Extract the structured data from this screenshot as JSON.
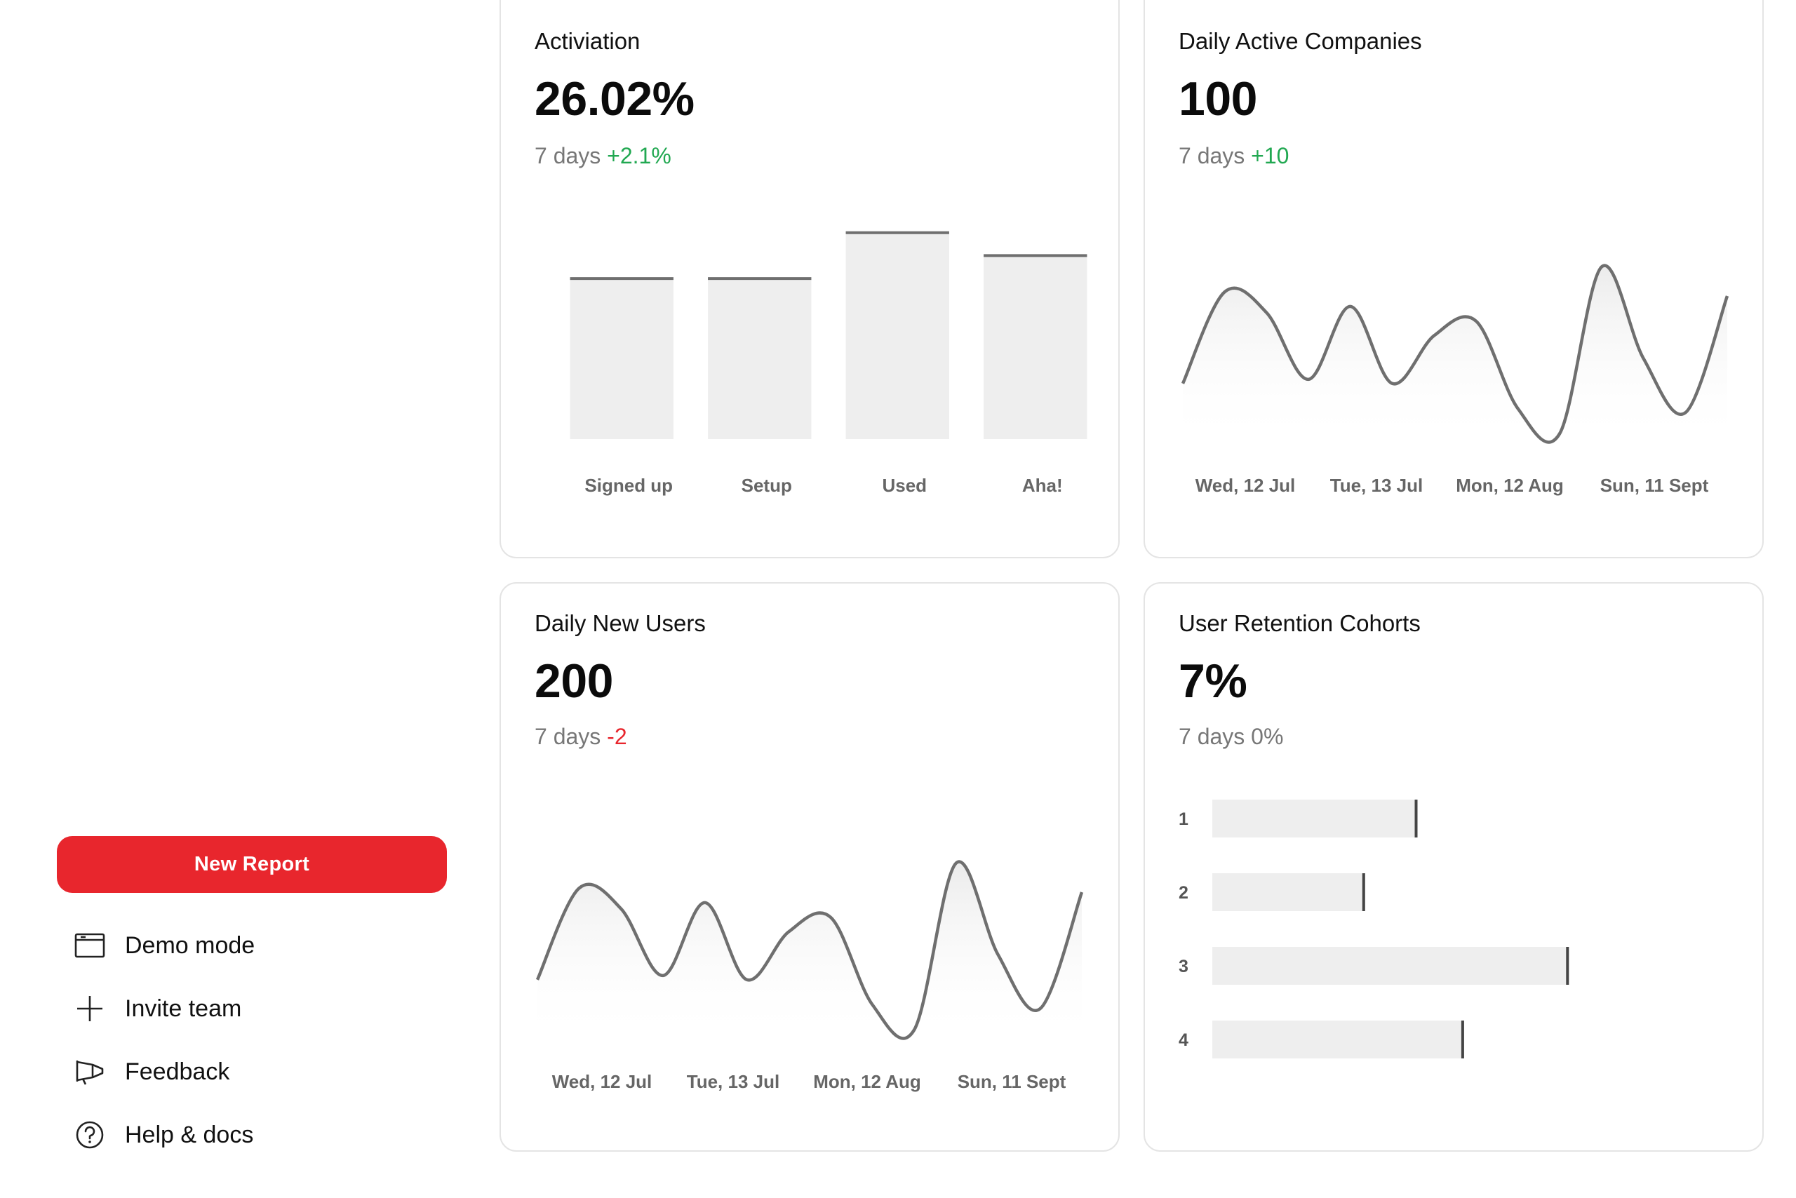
{
  "sidebar": {
    "new_report_label": "New Report",
    "items": [
      {
        "label": "Demo mode",
        "icon": "window-icon"
      },
      {
        "label": "Invite team",
        "icon": "plus-icon"
      },
      {
        "label": "Feedback",
        "icon": "megaphone-icon"
      },
      {
        "label": "Help & docs",
        "icon": "help-circle-icon"
      }
    ]
  },
  "colors": {
    "accent": "#e8262d",
    "positive": "#21a851",
    "negative": "#e8262d",
    "bar_fill": "#eeeeee",
    "line": "#6f6f6f"
  },
  "cards": {
    "activation": {
      "title": "Activiation",
      "value": "26.02%",
      "period": "7 days",
      "delta": "+2.1%"
    },
    "daily_active_companies": {
      "title": "Daily Active Companies",
      "value": "100",
      "period": "7 days",
      "delta": "+10"
    },
    "daily_new_users": {
      "title": "Daily New Users",
      "value": "200",
      "period": "7 days",
      "delta": "-2"
    },
    "retention": {
      "title": "User Retention Cohorts",
      "value": "7%",
      "period": "7 days",
      "delta": "0%"
    }
  },
  "chart_data": [
    {
      "type": "bar",
      "categories": [
        "Signed up",
        "Setup",
        "Used",
        "Aha!"
      ],
      "values": [
        70,
        70,
        90,
        80
      ],
      "ylim": [
        0,
        100
      ]
    },
    {
      "type": "area",
      "x_tick_labels": [
        "Wed, 12 Jul",
        "Tue, 13 Jul",
        "Mon, 12 Aug",
        "Sun, 11 Sept"
      ],
      "values": [
        26,
        70,
        60,
        28,
        63,
        26,
        49,
        56,
        14,
        2,
        82,
        38,
        12,
        68
      ],
      "ylim": [
        0,
        100
      ]
    },
    {
      "type": "area",
      "x_tick_labels": [
        "Wed, 12 Jul",
        "Tue, 13 Jul",
        "Mon, 12 Aug",
        "Sun, 11 Sept"
      ],
      "values": [
        26,
        70,
        60,
        28,
        63,
        26,
        49,
        56,
        14,
        2,
        82,
        38,
        12,
        68
      ],
      "ylim": [
        0,
        100
      ]
    },
    {
      "type": "bar",
      "orientation": "horizontal",
      "categories": [
        "1",
        "2",
        "3",
        "4"
      ],
      "values": [
        35,
        26,
        61,
        43
      ],
      "xlim": [
        0,
        100
      ]
    }
  ]
}
